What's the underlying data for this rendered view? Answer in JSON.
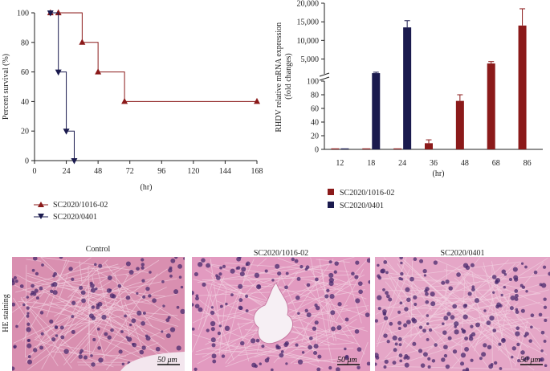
{
  "colors": {
    "series_a": "#8b1a1a",
    "series_b": "#1a1a4e",
    "tissue_bg": "#d98fb0",
    "nucleus": "#4a2a6e"
  },
  "chart_data": [
    {
      "type": "line",
      "step": true,
      "xlabel": "(hr)",
      "ylabel": "Percent survival (%)",
      "xticks": [
        0,
        24,
        48,
        72,
        96,
        120,
        144,
        168
      ],
      "yticks": [
        0,
        20,
        40,
        60,
        80,
        100
      ],
      "xlim": [
        0,
        168
      ],
      "ylim": [
        0,
        100
      ],
      "legend_position": "bottom-left",
      "series": [
        {
          "name": "SC2020/1016-02",
          "marker": "triangle-up",
          "x": [
            12,
            18,
            36,
            48,
            68,
            168
          ],
          "y": [
            100,
            100,
            80,
            60,
            40,
            40
          ]
        },
        {
          "name": "SC2020/0401",
          "marker": "triangle-down",
          "x": [
            12,
            18,
            24,
            30
          ],
          "y": [
            100,
            60,
            20,
            0
          ]
        }
      ]
    },
    {
      "type": "bar",
      "xlabel": "(hr)",
      "ylabel": "RHDV relative mRNA expression (fold changes)",
      "categories": [
        "12",
        "18",
        "24",
        "36",
        "48",
        "68",
        "86"
      ],
      "axis_break": true,
      "lower_yticks": [
        0,
        20,
        40,
        60,
        80,
        100
      ],
      "upper_yticks": [
        "5,000",
        "10,000",
        "15,000",
        "20,000"
      ],
      "upper_ytick_values": [
        5000,
        10000,
        15000,
        20000
      ],
      "legend_position": "bottom-left",
      "series": [
        {
          "name": "SC2020/1016-02",
          "values": [
            1,
            0.5,
            1,
            9,
            71,
            3800,
            14000
          ],
          "errors": [
            0,
            0,
            0,
            5,
            9,
            500,
            4500
          ]
        },
        {
          "name": "SC2020/0401",
          "values": [
            1,
            1200,
            13500,
            null,
            null,
            null,
            null
          ],
          "errors": [
            0,
            250,
            1800,
            0,
            0,
            0,
            0
          ]
        }
      ]
    }
  ],
  "histology": {
    "row_label": "HE staining",
    "panels": [
      {
        "title": "Control",
        "scale": "50 μm"
      },
      {
        "title": "SC2020/1016-02",
        "scale": "50 μm"
      },
      {
        "title": "SC2020/0401",
        "scale": "50 μm"
      }
    ]
  }
}
